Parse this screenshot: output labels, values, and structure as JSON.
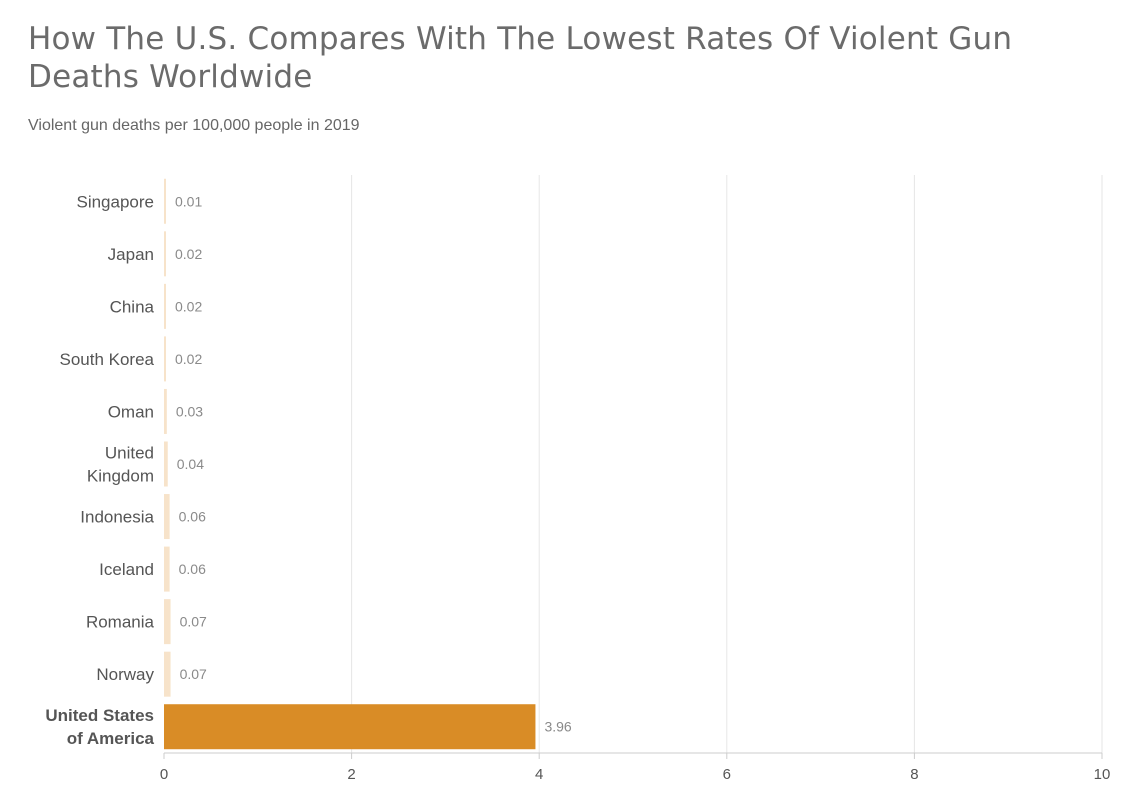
{
  "title": "How The U.S. Compares With The Lowest Rates Of Violent Gun Deaths Worldwide",
  "subtitle": "Violent gun deaths per 100,000 people in 2019",
  "colors": {
    "highlight": "#d98c26",
    "base": "#f7e3ca",
    "grid": "#e6e6e6",
    "axis": "#cccccc"
  },
  "chart_data": {
    "type": "bar",
    "orientation": "horizontal",
    "title": "How The U.S. Compares With The Lowest Rates Of Violent Gun Deaths Worldwide",
    "subtitle": "Violent gun deaths per 100,000 people in 2019",
    "categories": [
      [
        "Singapore"
      ],
      [
        "Japan"
      ],
      [
        "China"
      ],
      [
        "South Korea"
      ],
      [
        "Oman"
      ],
      [
        "United",
        "Kingdom"
      ],
      [
        "Indonesia"
      ],
      [
        "Iceland"
      ],
      [
        "Romania"
      ],
      [
        "Norway"
      ],
      [
        "United States",
        "of America"
      ]
    ],
    "values": [
      0.01,
      0.02,
      0.02,
      0.02,
      0.03,
      0.04,
      0.06,
      0.06,
      0.07,
      0.07,
      3.96
    ],
    "value_labels": [
      "0.01",
      "0.02",
      "0.02",
      "0.02",
      "0.03",
      "0.04",
      "0.06",
      "0.06",
      "0.07",
      "0.07",
      "3.96"
    ],
    "highlight": [
      "United States",
      "of America"
    ],
    "xlim": [
      0,
      10
    ],
    "xticks": [
      0,
      2,
      4,
      6,
      8,
      10
    ],
    "xtick_labels": [
      "0",
      "2",
      "4",
      "6",
      "8",
      "10"
    ],
    "xlabel": "",
    "ylabel": "",
    "grid": true,
    "legend": "none"
  }
}
